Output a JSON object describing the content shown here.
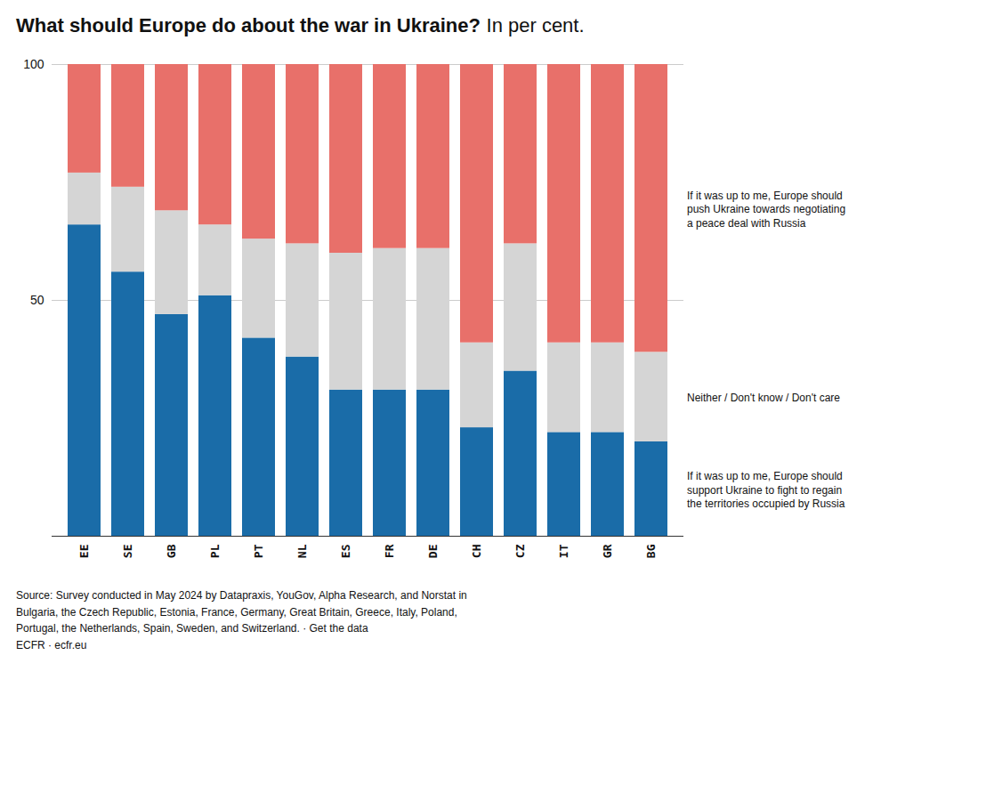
{
  "chart_data": {
    "type": "bar",
    "stacked": true,
    "title": "What should Europe do about the war in Ukraine?",
    "subtitle": "In per cent.",
    "source": "Source: Survey conducted in May 2024 by Datapraxis, YouGov, Alpha Research, and Norstat in\nBulgaria, the Czech Republic, Estonia, France, Germany, Great Britain, Greece, Italy, Poland,\nPortugal, the Netherlands, Spain, Sweden, and Switzerland. · Get the data\nECFR · ecfr.eu",
    "categories": [
      "EE",
      "SE",
      "GB",
      "PL",
      "PT",
      "NL",
      "ES",
      "FR",
      "DE",
      "CH",
      "CZ",
      "IT",
      "GR",
      "BG"
    ],
    "series": [
      {
        "name": "If it was up to me, Europe should\nsupport Ukraine to fight to regain\nthe territories occupied by Russia",
        "color": "#1a6ca8",
        "values": [
          66,
          56,
          47,
          51,
          42,
          38,
          31,
          31,
          31,
          23,
          35,
          22,
          22,
          20
        ]
      },
      {
        "name": "Neither / Don't know / Don't care",
        "color": "#d5d5d5",
        "values": [
          11,
          18,
          22,
          15,
          21,
          24,
          29,
          30,
          30,
          18,
          27,
          19,
          19,
          19
        ]
      },
      {
        "name": "If it was up to me, Europe should\npush Ukraine towards negotiating\na peace deal with Russia",
        "color": "#e8706a",
        "values": [
          23,
          26,
          31,
          34,
          37,
          38,
          40,
          39,
          39,
          59,
          38,
          59,
          59,
          61
        ]
      }
    ],
    "ylim": [
      0,
      100
    ],
    "yticks": [
      50,
      100
    ],
    "grid": true
  }
}
